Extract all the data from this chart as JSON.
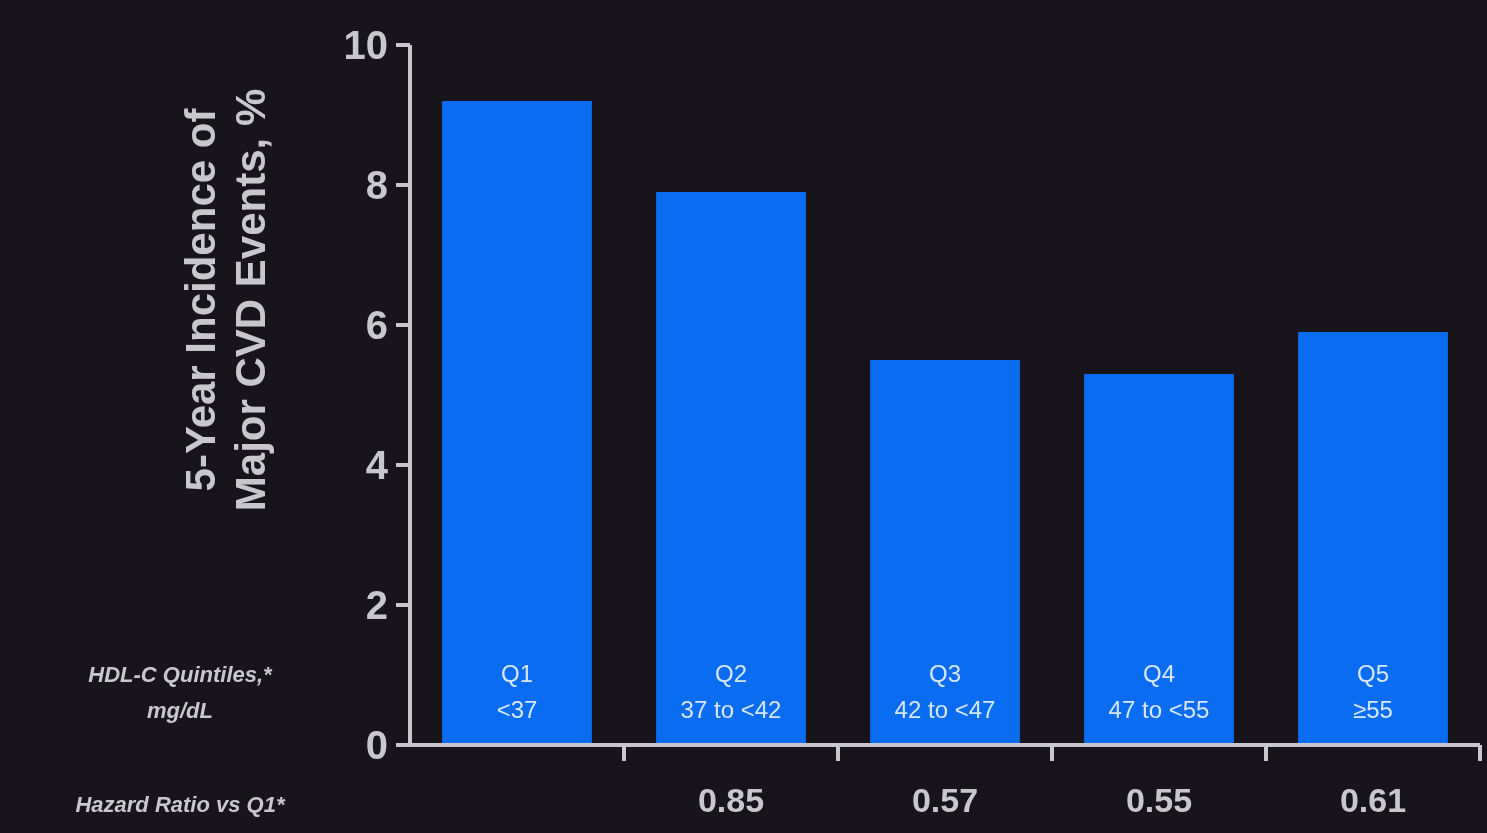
{
  "chart_data": {
    "type": "bar",
    "ylabel": "5-Year Incidence of\nMajor CVD Events, %",
    "xlabel": "HDL-C Quintiles,*\nmg/dL",
    "categories": [
      "Q1\n<37",
      "Q2\n37 to <42",
      "Q3\n42 to <47",
      "Q4\n47 to <55",
      "Q5\n≥55"
    ],
    "values": [
      9.2,
      7.9,
      5.5,
      5.3,
      5.9
    ],
    "color": "#0a6cf0",
    "ylim": [
      0,
      10
    ],
    "yticks": [
      0,
      2,
      4,
      6,
      8,
      10
    ],
    "grid": false,
    "annotations": [
      "Hazard Ratio vs Q1*",
      "0.85",
      "0.57",
      "0.55",
      "0.61"
    ]
  }
}
